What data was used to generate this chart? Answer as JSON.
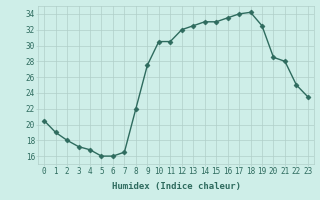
{
  "x": [
    0,
    1,
    2,
    3,
    4,
    5,
    6,
    7,
    8,
    9,
    10,
    11,
    12,
    13,
    14,
    15,
    16,
    17,
    18,
    19,
    20,
    21,
    22,
    23
  ],
  "y": [
    20.5,
    19.0,
    18.0,
    17.2,
    16.8,
    16.0,
    16.0,
    16.5,
    22.0,
    27.5,
    30.5,
    30.5,
    32.0,
    32.5,
    33.0,
    33.0,
    33.5,
    34.0,
    34.2,
    32.5,
    28.5,
    28.0,
    25.0,
    23.5
  ],
  "line_color": "#2e6b5e",
  "marker": "D",
  "markersize": 2.5,
  "linewidth": 1.0,
  "bg_color": "#ceeee8",
  "grid_color": "#b0cfc9",
  "xlabel": "Humidex (Indice chaleur)",
  "ylabel": "",
  "xlim": [
    -0.5,
    23.5
  ],
  "ylim": [
    15,
    35
  ],
  "xticks": [
    0,
    1,
    2,
    3,
    4,
    5,
    6,
    7,
    8,
    9,
    10,
    11,
    12,
    13,
    14,
    15,
    16,
    17,
    18,
    19,
    20,
    21,
    22,
    23
  ],
  "yticks": [
    16,
    18,
    20,
    22,
    24,
    26,
    28,
    30,
    32,
    34
  ],
  "xlabel_fontsize": 6.5,
  "tick_fontsize": 5.5
}
